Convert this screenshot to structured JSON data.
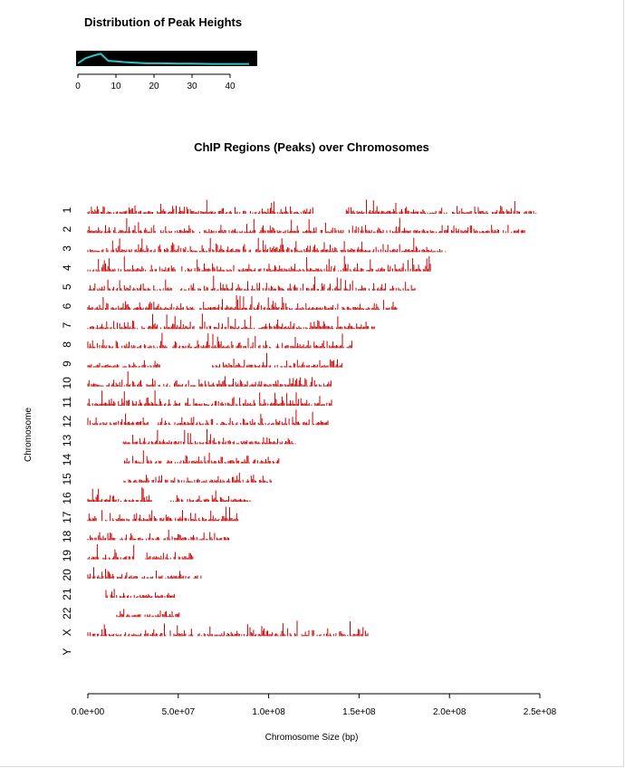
{
  "chart_data": [
    {
      "type": "line",
      "title": "Distribution of Peak Heights",
      "xlabel": "",
      "ylabel": "",
      "xlim": [
        0,
        47
      ],
      "x_ticks": [
        0,
        10,
        20,
        30,
        40
      ],
      "x": [
        0,
        2,
        4,
        6,
        8,
        10,
        12,
        15,
        18,
        22,
        26,
        30,
        35,
        40,
        45
      ],
      "y": [
        0.15,
        0.55,
        0.75,
        0.9,
        0.35,
        0.3,
        0.25,
        0.2,
        0.15,
        0.15,
        0.12,
        0.12,
        0.1,
        0.1,
        0.1
      ],
      "colors": {
        "background": "#000000",
        "line": "#26c6c6"
      }
    },
    {
      "type": "scatter",
      "title": "ChIP Regions (Peaks) over Chromosomes",
      "xlabel": "Chromosome Size (bp)",
      "ylabel": "Chromosome",
      "xlim": [
        0,
        250000000
      ],
      "x_ticks": [
        0,
        50000000,
        100000000,
        150000000,
        200000000,
        250000000
      ],
      "x_tick_labels": [
        "0.0e+00",
        "5.0e+07",
        "1.0e+08",
        "1.5e+08",
        "2.0e+08",
        "2.5e+08"
      ],
      "categories": [
        "1",
        "2",
        "3",
        "4",
        "5",
        "6",
        "7",
        "8",
        "9",
        "10",
        "11",
        "12",
        "13",
        "14",
        "15",
        "16",
        "17",
        "18",
        "19",
        "20",
        "21",
        "22",
        "X",
        "Y"
      ],
      "colors": {
        "peaks": "#cc0000"
      },
      "series": [
        {
          "values": [
            {
              "start": 0,
              "end": 125000000
            },
            {
              "start": 143000000,
              "end": 248000000
            }
          ]
        },
        {
          "values": [
            {
              "start": 0,
              "end": 93000000
            },
            {
              "start": 95000000,
              "end": 242000000
            }
          ]
        },
        {
          "values": [
            {
              "start": 0,
              "end": 90000000
            },
            {
              "start": 93000000,
              "end": 198000000
            }
          ]
        },
        {
          "values": [
            {
              "start": 0,
              "end": 50000000
            },
            {
              "start": 52000000,
              "end": 190000000
            }
          ]
        },
        {
          "values": [
            {
              "start": 0,
              "end": 48000000
            },
            {
              "start": 50000000,
              "end": 181000000
            }
          ]
        },
        {
          "values": [
            {
              "start": 0,
              "end": 59000000
            },
            {
              "start": 62000000,
              "end": 171000000
            }
          ]
        },
        {
          "values": [
            {
              "start": 0,
              "end": 59000000
            },
            {
              "start": 62000000,
              "end": 159000000
            }
          ]
        },
        {
          "values": [
            {
              "start": 0,
              "end": 44000000
            },
            {
              "start": 47000000,
              "end": 146000000
            }
          ]
        },
        {
          "values": [
            {
              "start": 0,
              "end": 40000000
            },
            {
              "start": 69000000,
              "end": 141000000
            }
          ]
        },
        {
          "values": [
            {
              "start": 0,
              "end": 40000000
            },
            {
              "start": 42000000,
              "end": 135000000
            }
          ]
        },
        {
          "values": [
            {
              "start": 0,
              "end": 51000000
            },
            {
              "start": 54000000,
              "end": 135000000
            }
          ]
        },
        {
          "values": [
            {
              "start": 0,
              "end": 34000000
            },
            {
              "start": 37000000,
              "end": 133000000
            }
          ]
        },
        {
          "values": [
            {
              "start": 19000000,
              "end": 115000000
            }
          ]
        },
        {
          "values": [
            {
              "start": 19000000,
              "end": 107000000
            }
          ]
        },
        {
          "values": [
            {
              "start": 20000000,
              "end": 102000000
            }
          ]
        },
        {
          "values": [
            {
              "start": 0,
              "end": 36000000
            },
            {
              "start": 46000000,
              "end": 90000000
            }
          ]
        },
        {
          "values": [
            {
              "start": 0,
              "end": 24000000
            },
            {
              "start": 25000000,
              "end": 83000000
            }
          ]
        },
        {
          "values": [
            {
              "start": 0,
              "end": 15000000
            },
            {
              "start": 18000000,
              "end": 78000000
            }
          ]
        },
        {
          "values": [
            {
              "start": 0,
              "end": 26000000
            },
            {
              "start": 32000000,
              "end": 59000000
            }
          ]
        },
        {
          "values": [
            {
              "start": 0,
              "end": 28000000
            },
            {
              "start": 30000000,
              "end": 63000000
            }
          ]
        },
        {
          "values": [
            {
              "start": 10000000,
              "end": 48000000
            }
          ]
        },
        {
          "values": [
            {
              "start": 16000000,
              "end": 51000000
            }
          ]
        },
        {
          "values": [
            {
              "start": 0,
              "end": 58000000
            },
            {
              "start": 61000000,
              "end": 155000000
            }
          ]
        },
        {
          "values": []
        }
      ]
    }
  ]
}
